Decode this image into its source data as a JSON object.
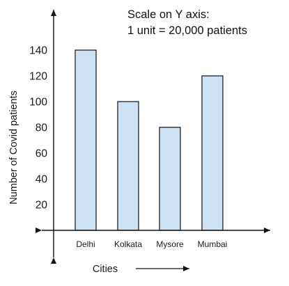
{
  "chart_data": {
    "type": "bar",
    "categories": [
      "Delhi",
      "Kolkata",
      "Mysore",
      "Mumbai"
    ],
    "values": [
      140,
      100,
      80,
      120
    ],
    "yticks": [
      20,
      40,
      60,
      80,
      100,
      120,
      140
    ],
    "ylim": [
      0,
      160
    ],
    "xlabel": "Cities",
    "ylabel": "Number of Covid patients",
    "annotation": [
      "Scale on Y axis:",
      "1 unit = 20,000 patients"
    ],
    "grid": false,
    "colors": {
      "bar_fill": "#cfe2f3",
      "bar_stroke": "#111111",
      "axis": "#111111"
    }
  }
}
